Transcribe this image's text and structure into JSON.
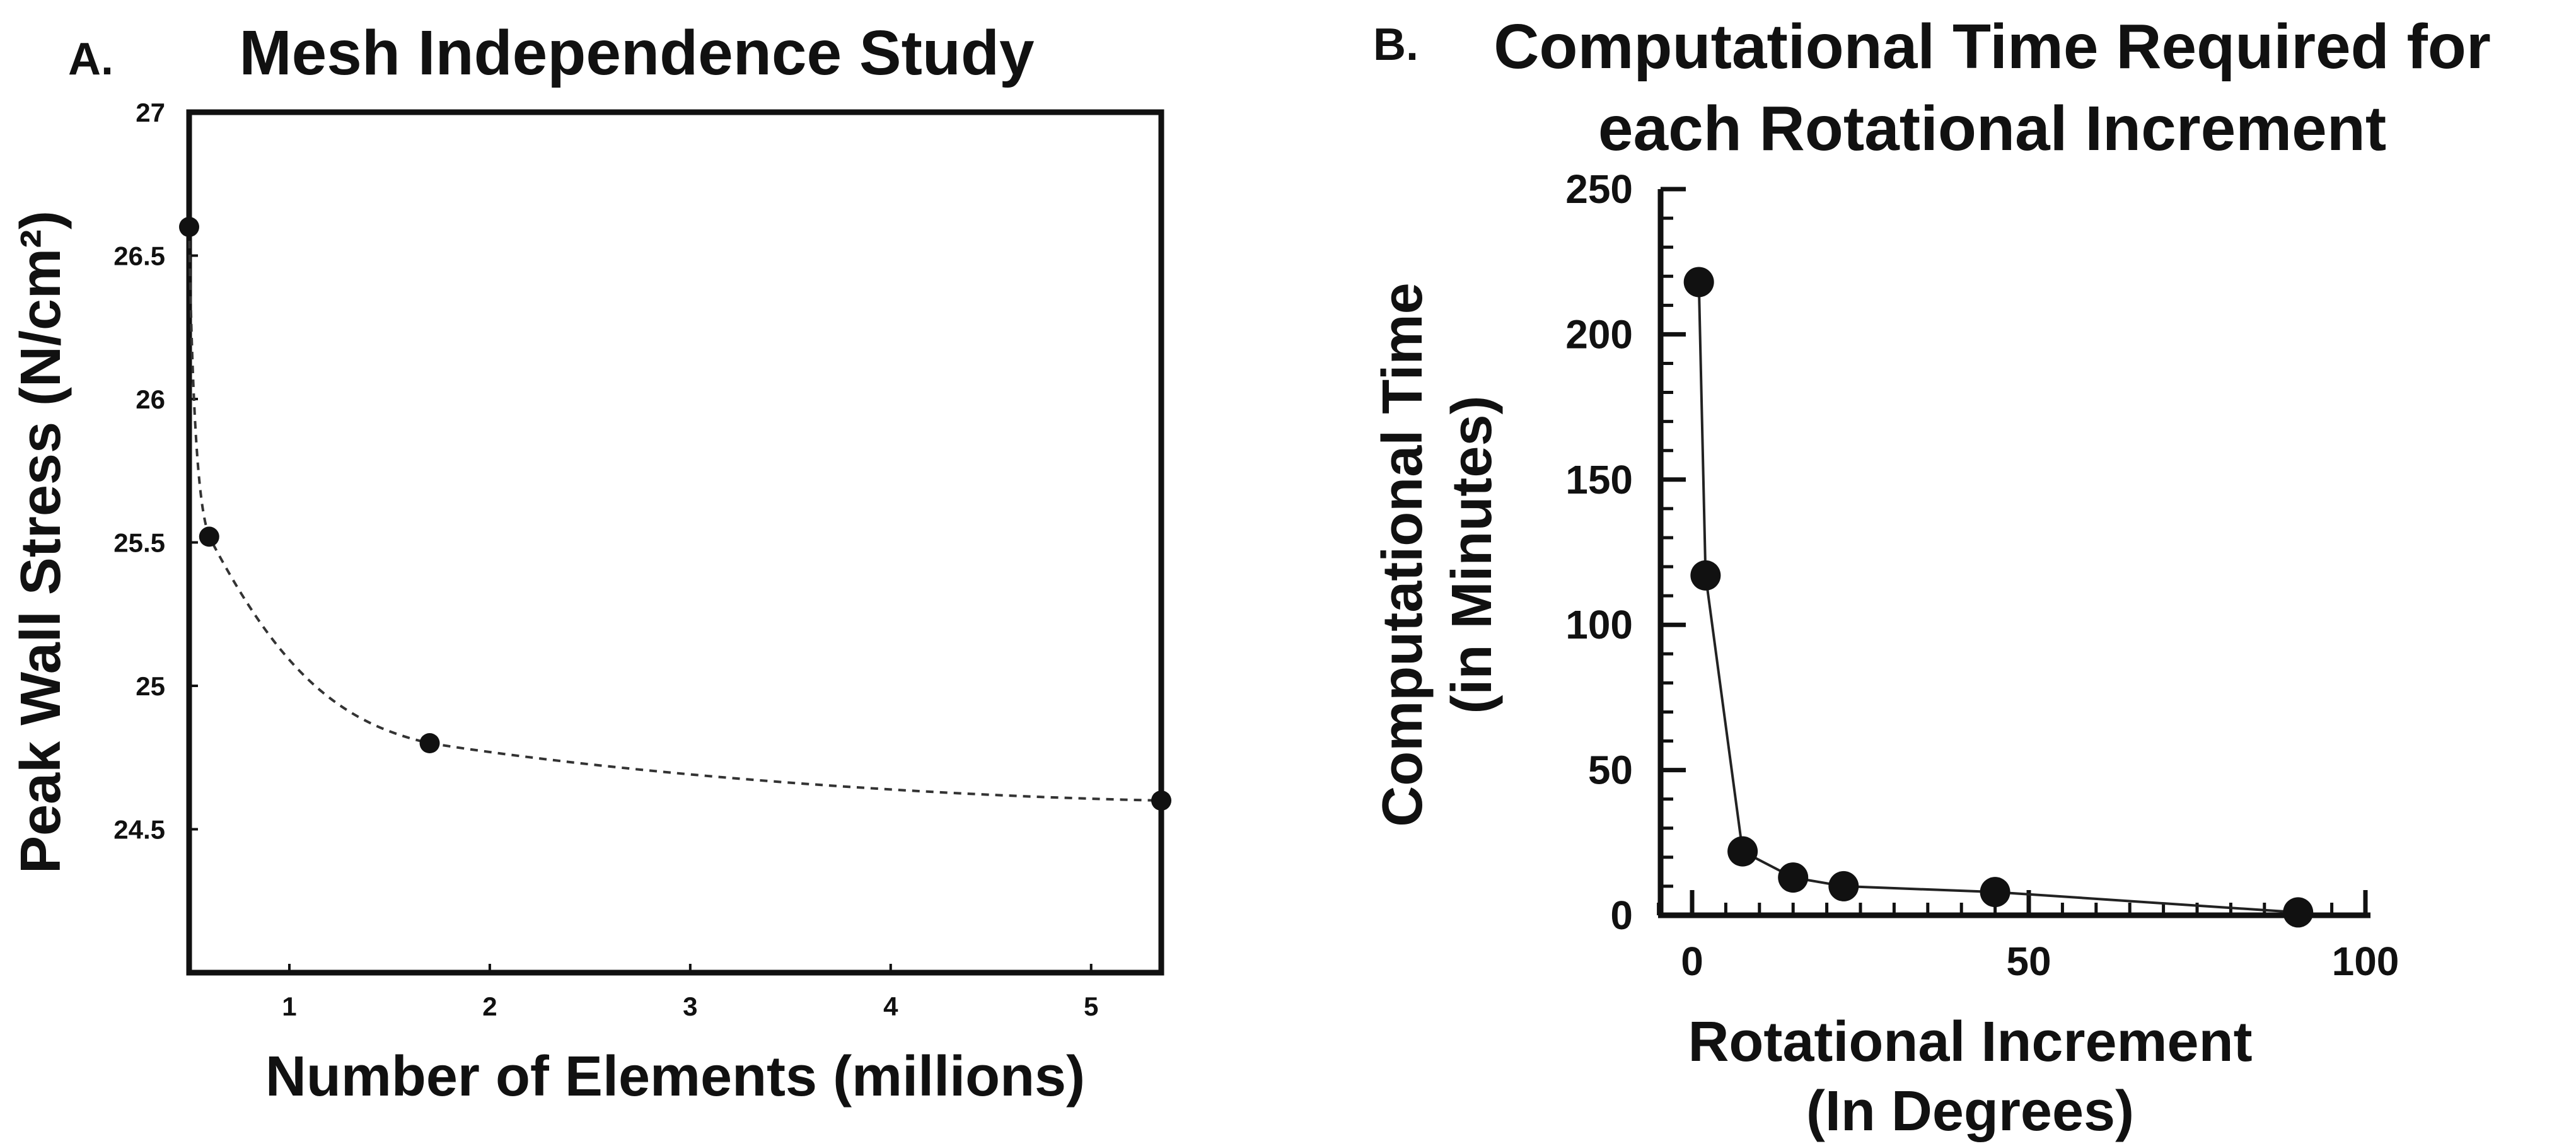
{
  "chart_data": [
    {
      "type": "line",
      "panel_label": "A.",
      "title": "Mesh Independence Study",
      "xlabel": "Number of Elements (millions)",
      "ylabel": "Peak Wall Stress (N/cm²)",
      "xlim": [
        0.5,
        5.35
      ],
      "ylim": [
        24,
        27
      ],
      "xticks": [
        "1",
        "2",
        "3",
        "4",
        "5"
      ],
      "yticks": [
        "24.5",
        "25",
        "25.5",
        "26",
        "26.5",
        "27"
      ],
      "line_style": "dashed",
      "series": [
        {
          "name": "Peak Wall Stress",
          "x": [
            0.5,
            0.6,
            1.7,
            5.35
          ],
          "y": [
            26.6,
            25.52,
            24.8,
            24.6
          ]
        }
      ],
      "color": "#111111"
    },
    {
      "type": "line",
      "panel_label": "B.",
      "title": "Computational Time Required for each Rotational Increment",
      "title_lines": [
        "Computational Time Required for",
        "each Rotational Increment"
      ],
      "xlabel": "Rotational Increment (In Degrees)",
      "xlabel_lines": [
        "Rotational Increment",
        "(In Degrees)"
      ],
      "ylabel": "Computational Time (in Minutes)",
      "ylabel_lines": [
        "Computational Time",
        "(in Minutes)"
      ],
      "xlim": [
        -10,
        100
      ],
      "ylim": [
        0,
        250
      ],
      "xticks": [
        "0",
        "50",
        "100"
      ],
      "yticks": [
        "0",
        "50",
        "100",
        "150",
        "200",
        "250"
      ],
      "line_style": "solid",
      "series": [
        {
          "name": "Computational Time",
          "x": [
            1,
            2,
            7.5,
            15,
            22.5,
            45,
            90
          ],
          "y": [
            218,
            117,
            22,
            13,
            10,
            8,
            1
          ]
        }
      ],
      "color": "#111111"
    }
  ]
}
